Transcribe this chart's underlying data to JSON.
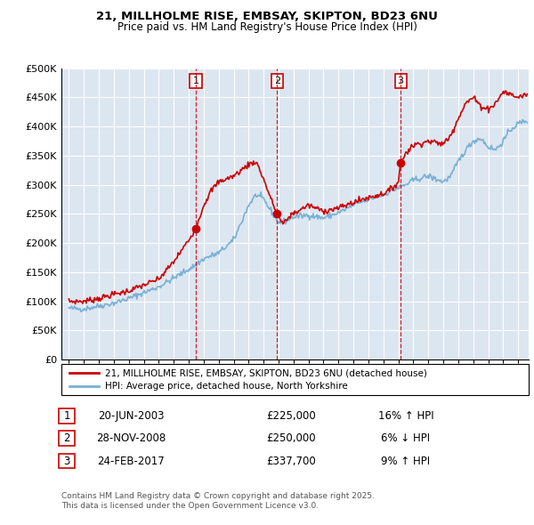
{
  "title_line1": "21, MILLHOLME RISE, EMBSAY, SKIPTON, BD23 6NU",
  "title_line2": "Price paid vs. HM Land Registry's House Price Index (HPI)",
  "legend_label_red": "21, MILLHOLME RISE, EMBSAY, SKIPTON, BD23 6NU (detached house)",
  "legend_label_blue": "HPI: Average price, detached house, North Yorkshire",
  "footer": "Contains HM Land Registry data © Crown copyright and database right 2025.\nThis data is licensed under the Open Government Licence v3.0.",
  "transactions": [
    {
      "num": 1,
      "date": "20-JUN-2003",
      "price": "£225,000",
      "hpi_diff": "16% ↑ HPI",
      "x_year": 2003.47,
      "y_val": 225000
    },
    {
      "num": 2,
      "date": "28-NOV-2008",
      "price": "£250,000",
      "hpi_diff": "6% ↓ HPI",
      "x_year": 2008.91,
      "y_val": 250000
    },
    {
      "num": 3,
      "date": "24-FEB-2017",
      "price": "£337,700",
      "hpi_diff": "9% ↑ HPI",
      "x_year": 2017.15,
      "y_val": 337700
    }
  ],
  "background_color": "#dce6f1",
  "plot_bg_color": "#dce6f1",
  "red_color": "#cc0000",
  "blue_color": "#7ab0d4",
  "grid_color": "#ffffff",
  "ylim": [
    0,
    500000
  ],
  "yticks": [
    0,
    50000,
    100000,
    150000,
    200000,
    250000,
    300000,
    350000,
    400000,
    450000,
    500000
  ],
  "xlim_start": 1994.5,
  "xlim_end": 2025.7,
  "hpi_key_x": [
    1995.0,
    1996.0,
    1997.0,
    1998.0,
    1999.0,
    2000.0,
    2001.0,
    2002.0,
    2003.0,
    2003.5,
    2004.0,
    2005.0,
    2006.0,
    2007.0,
    2007.5,
    2008.0,
    2008.5,
    2009.0,
    2009.5,
    2010.0,
    2011.0,
    2012.0,
    2013.0,
    2014.0,
    2015.0,
    2016.0,
    2017.0,
    2017.5,
    2018.0,
    2019.0,
    2020.0,
    2020.5,
    2021.0,
    2021.5,
    2022.0,
    2022.5,
    2023.0,
    2023.5,
    2024.0,
    2024.5,
    2025.0,
    2025.5
  ],
  "hpi_key_y": [
    88000,
    87000,
    92000,
    97000,
    105000,
    115000,
    125000,
    140000,
    155000,
    163000,
    173000,
    183000,
    205000,
    265000,
    283000,
    275000,
    255000,
    235000,
    238000,
    245000,
    248000,
    243000,
    252000,
    265000,
    275000,
    283000,
    295000,
    300000,
    308000,
    315000,
    305000,
    315000,
    340000,
    360000,
    375000,
    380000,
    365000,
    360000,
    375000,
    395000,
    405000,
    410000
  ],
  "red_key_x": [
    1995.0,
    1996.0,
    1997.0,
    1998.0,
    1999.0,
    2000.0,
    2001.0,
    2002.0,
    2003.0,
    2003.47,
    2004.0,
    2004.5,
    2005.0,
    2006.0,
    2007.0,
    2007.5,
    2008.0,
    2008.5,
    2008.91,
    2009.3,
    2009.8,
    2010.5,
    2011.0,
    2012.0,
    2013.0,
    2014.0,
    2015.0,
    2016.0,
    2016.5,
    2017.0,
    2017.15,
    2017.5,
    2018.0,
    2019.0,
    2020.0,
    2020.5,
    2021.0,
    2021.5,
    2022.0,
    2022.5,
    2023.0,
    2023.5,
    2024.0,
    2024.5,
    2025.0,
    2025.5
  ],
  "red_key_y": [
    100000,
    100000,
    105000,
    112000,
    118000,
    128000,
    138000,
    168000,
    205000,
    225000,
    265000,
    290000,
    305000,
    315000,
    335000,
    340000,
    310000,
    275000,
    250000,
    232000,
    248000,
    258000,
    265000,
    255000,
    260000,
    270000,
    278000,
    285000,
    292000,
    305000,
    337700,
    355000,
    368000,
    375000,
    370000,
    385000,
    415000,
    440000,
    450000,
    435000,
    430000,
    440000,
    460000,
    455000,
    450000,
    455000
  ]
}
